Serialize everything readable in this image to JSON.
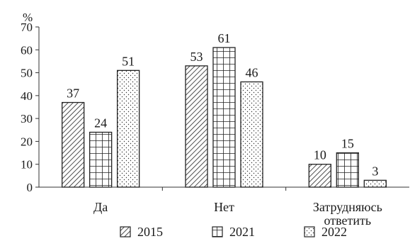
{
  "chart_data": {
    "type": "bar",
    "unit": "%",
    "categories": [
      [
        "Да"
      ],
      [
        "Нет"
      ],
      [
        "Затрудняюсь",
        "ответить"
      ]
    ],
    "series": [
      {
        "name": "2015",
        "values": [
          37,
          53,
          10
        ],
        "pattern": "hatch"
      },
      {
        "name": "2021",
        "values": [
          24,
          61,
          15
        ],
        "pattern": "grid"
      },
      {
        "name": "2022",
        "values": [
          51,
          46,
          3
        ],
        "pattern": "dots"
      }
    ],
    "yticks": [
      0,
      10,
      20,
      30,
      40,
      50,
      60,
      70
    ],
    "ylim": [
      0,
      70
    ],
    "grid": false,
    "legend_position": "bottom",
    "colors": {
      "ink": "#1a1a1a",
      "bar_fill": "#ffffff"
    }
  }
}
